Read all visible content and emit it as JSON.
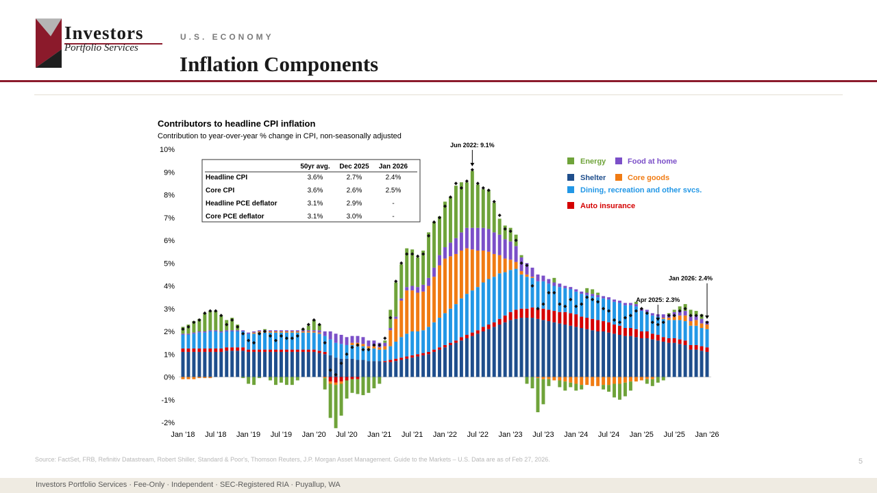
{
  "brand": {
    "name": "Investors",
    "sub": "Portfolio Services"
  },
  "header": {
    "section": "U.S. ECONOMY",
    "title": "Inflation Components"
  },
  "chart_data": {
    "type": "bar",
    "stacked": true,
    "title": "Contributors to headline CPI inflation",
    "subtitle": "Contribution to year-over-year % change in CPI, non-seasonally adjusted",
    "ylim": [
      -2,
      10
    ],
    "ytick_labels": [
      "-2%",
      "-1%",
      "0%",
      "1%",
      "2%",
      "3%",
      "4%",
      "5%",
      "6%",
      "7%",
      "8%",
      "9%",
      "10%"
    ],
    "xtick_labels": [
      "Jan '18",
      "Jul '18",
      "Jan '19",
      "Jul '19",
      "Jan '20",
      "Jul '20",
      "Jan '21",
      "Jul '21",
      "Jan '22",
      "Jul '22",
      "Jan '23",
      "Jul '23",
      "Jan '24",
      "Jul '24",
      "Jan '25",
      "Jul '25",
      "Jan '26"
    ],
    "months_from": "Jan 2018",
    "series_order": [
      "Shelter",
      "Auto insurance",
      "Dining, recreation and other svcs.",
      "Core goods",
      "Food at home",
      "Energy"
    ],
    "colors": {
      "Shelter": "#1f4e8c",
      "Auto insurance": "#d40000",
      "Dining, recreation and other svcs.": "#2297e6",
      "Core goods": "#f07b13",
      "Food at home": "#7b4fc8",
      "Energy": "#6fa33a",
      "headline": "#111111"
    },
    "legend": {
      "energy": "Energy",
      "food": "Food at home",
      "shelter": "Shelter",
      "core_goods": "Core goods",
      "dining": "Dining, recreation and other svcs.",
      "auto": "Auto insurance"
    },
    "table": {
      "headers": [
        "",
        "50yr avg.",
        "Dec 2025",
        "Jan 2026"
      ],
      "rows": [
        [
          "Headline CPI",
          "3.6%",
          "2.7%",
          "2.4%"
        ],
        [
          "Core CPI",
          "3.6%",
          "2.6%",
          "2.5%"
        ],
        [
          "Headline PCE deflator",
          "3.1%",
          "2.9%",
          "-"
        ],
        [
          "Core PCE deflator",
          "3.1%",
          "3.0%",
          "-"
        ]
      ]
    },
    "annotations": [
      {
        "text": "Jun 2022: 9.1%",
        "month_index": 53,
        "value": 9.1
      },
      {
        "text": "Apr 2025: 2.3%",
        "month_index": 87,
        "value": 2.3
      },
      {
        "text": "Jan 2026: 2.4%",
        "month_index": 96,
        "value": 2.4
      }
    ],
    "headline": [
      2.1,
      2.2,
      2.4,
      2.5,
      2.8,
      2.9,
      2.9,
      2.7,
      2.3,
      2.5,
      2.2,
      1.9,
      1.6,
      1.5,
      1.9,
      2.0,
      1.8,
      1.6,
      1.8,
      1.7,
      1.7,
      1.8,
      2.1,
      2.3,
      2.5,
      2.3,
      1.5,
      0.3,
      0.1,
      0.6,
      1.0,
      1.3,
      1.4,
      1.2,
      1.2,
      1.4,
      1.4,
      1.7,
      2.6,
      4.2,
      5.0,
      5.4,
      5.4,
      5.3,
      5.4,
      6.2,
      6.8,
      7.0,
      7.5,
      7.9,
      8.5,
      8.3,
      8.6,
      9.1,
      8.5,
      8.3,
      8.2,
      7.7,
      7.1,
      6.5,
      6.4,
      6.0,
      5.0,
      4.9,
      4.0,
      3.0,
      3.2,
      3.7,
      3.7,
      3.2,
      3.1,
      3.4,
      3.1,
      3.2,
      3.5,
      3.4,
      3.3,
      3.0,
      2.9,
      2.5,
      2.4,
      2.6,
      2.7,
      2.9,
      3.0,
      2.8,
      2.4,
      2.3,
      2.4,
      2.7,
      2.7,
      2.9,
      3.0,
      2.7,
      2.7,
      2.7,
      2.4
    ],
    "series": [
      {
        "name": "Shelter",
        "values": [
          1.1,
          1.1,
          1.1,
          1.1,
          1.1,
          1.1,
          1.1,
          1.1,
          1.15,
          1.15,
          1.15,
          1.15,
          1.1,
          1.1,
          1.1,
          1.1,
          1.1,
          1.1,
          1.1,
          1.1,
          1.1,
          1.1,
          1.1,
          1.1,
          1.1,
          1.05,
          1.0,
          0.95,
          0.85,
          0.8,
          0.8,
          0.8,
          0.75,
          0.75,
          0.7,
          0.7,
          0.7,
          0.65,
          0.65,
          0.7,
          0.75,
          0.8,
          0.85,
          0.9,
          0.95,
          1.0,
          1.1,
          1.2,
          1.3,
          1.4,
          1.5,
          1.6,
          1.7,
          1.8,
          1.9,
          2.0,
          2.1,
          2.2,
          2.3,
          2.4,
          2.5,
          2.55,
          2.6,
          2.6,
          2.6,
          2.55,
          2.5,
          2.45,
          2.4,
          2.35,
          2.3,
          2.25,
          2.2,
          2.15,
          2.1,
          2.05,
          2.0,
          2.0,
          1.95,
          1.9,
          1.85,
          1.8,
          1.8,
          1.75,
          1.7,
          1.7,
          1.65,
          1.6,
          1.55,
          1.5,
          1.5,
          1.45,
          1.4,
          1.2,
          1.2,
          1.15,
          1.1
        ]
      },
      {
        "name": "Auto insurance",
        "values": [
          0.15,
          0.15,
          0.15,
          0.15,
          0.15,
          0.15,
          0.15,
          0.15,
          0.15,
          0.15,
          0.15,
          0.15,
          0.1,
          0.1,
          0.1,
          0.1,
          0.1,
          0.1,
          0.1,
          0.1,
          0.1,
          0.1,
          0.1,
          0.1,
          0.1,
          0.1,
          0.1,
          -0.2,
          -0.25,
          -0.2,
          -0.15,
          -0.1,
          -0.1,
          0.0,
          0.0,
          0.0,
          0.0,
          0.05,
          0.1,
          0.1,
          0.1,
          0.1,
          0.1,
          0.1,
          0.1,
          0.1,
          0.1,
          0.1,
          0.1,
          0.1,
          0.1,
          0.15,
          0.15,
          0.15,
          0.15,
          0.2,
          0.2,
          0.2,
          0.25,
          0.3,
          0.35,
          0.4,
          0.4,
          0.4,
          0.45,
          0.45,
          0.5,
          0.5,
          0.5,
          0.5,
          0.55,
          0.55,
          0.55,
          0.5,
          0.5,
          0.5,
          0.5,
          0.45,
          0.45,
          0.4,
          0.4,
          0.35,
          0.35,
          0.35,
          0.3,
          0.3,
          0.25,
          0.25,
          0.2,
          0.2,
          0.2,
          0.2,
          0.2,
          0.2,
          0.2,
          0.2,
          0.2
        ]
      },
      {
        "name": "Dining, recreation and other svcs.",
        "values": [
          0.6,
          0.6,
          0.65,
          0.7,
          0.7,
          0.75,
          0.75,
          0.7,
          0.7,
          0.7,
          0.7,
          0.7,
          0.7,
          0.7,
          0.75,
          0.75,
          0.75,
          0.75,
          0.75,
          0.75,
          0.75,
          0.75,
          0.75,
          0.75,
          0.75,
          0.75,
          0.7,
          0.7,
          0.65,
          0.65,
          0.6,
          0.6,
          0.6,
          0.6,
          0.55,
          0.55,
          0.5,
          0.5,
          0.6,
          0.75,
          0.9,
          1.0,
          1.05,
          1.0,
          1.0,
          1.1,
          1.2,
          1.3,
          1.4,
          1.5,
          1.6,
          1.7,
          1.8,
          1.85,
          1.9,
          1.95,
          2.0,
          2.0,
          2.0,
          1.9,
          1.85,
          1.8,
          1.5,
          1.4,
          1.3,
          1.2,
          1.2,
          1.15,
          1.1,
          1.1,
          1.05,
          1.05,
          1.0,
          1.0,
          1.0,
          1.0,
          1.0,
          1.0,
          1.0,
          1.0,
          1.0,
          1.0,
          1.0,
          1.0,
          0.9,
          0.85,
          0.8,
          0.8,
          0.8,
          0.8,
          0.8,
          0.85,
          0.85,
          0.85,
          0.85,
          0.8,
          0.8
        ]
      },
      {
        "name": "Core goods",
        "values": [
          -0.1,
          -0.1,
          -0.1,
          -0.05,
          -0.05,
          -0.05,
          0.0,
          0.0,
          0.0,
          0.0,
          0.0,
          0.0,
          0.0,
          0.05,
          0.05,
          0.05,
          0.05,
          0.05,
          0.05,
          0.05,
          0.05,
          0.05,
          0.05,
          0.05,
          0.05,
          0.05,
          -0.05,
          -0.1,
          -0.1,
          -0.1,
          0.0,
          0.1,
          0.15,
          0.1,
          0.1,
          0.1,
          0.1,
          0.15,
          0.7,
          1.0,
          1.6,
          1.9,
          1.8,
          1.7,
          1.7,
          1.8,
          2.0,
          2.3,
          2.4,
          2.3,
          2.2,
          2.1,
          2.0,
          1.8,
          1.6,
          1.4,
          1.2,
          1.0,
          0.8,
          0.6,
          0.45,
          0.3,
          0.15,
          0.1,
          0.05,
          -0.05,
          -0.1,
          -0.1,
          -0.15,
          -0.15,
          -0.2,
          -0.25,
          -0.3,
          -0.35,
          -0.35,
          -0.4,
          -0.4,
          -0.35,
          -0.35,
          -0.3,
          -0.3,
          -0.25,
          -0.2,
          -0.2,
          -0.15,
          -0.1,
          -0.1,
          0.0,
          0.05,
          0.1,
          0.15,
          0.2,
          0.25,
          0.2,
          0.25,
          0.2,
          0.2
        ]
      },
      {
        "name": "Food at home",
        "values": [
          0.05,
          0.05,
          0.05,
          0.05,
          0.05,
          0.05,
          0.05,
          0.05,
          0.05,
          0.05,
          0.05,
          0.05,
          0.05,
          0.05,
          0.05,
          0.05,
          0.05,
          0.05,
          0.05,
          0.05,
          0.05,
          0.05,
          0.05,
          0.05,
          0.05,
          0.1,
          0.2,
          0.35,
          0.4,
          0.4,
          0.35,
          0.3,
          0.3,
          0.3,
          0.25,
          0.25,
          0.2,
          0.15,
          0.1,
          0.1,
          0.1,
          0.15,
          0.2,
          0.25,
          0.3,
          0.35,
          0.4,
          0.45,
          0.5,
          0.6,
          0.7,
          0.8,
          0.9,
          0.95,
          1.0,
          1.0,
          1.0,
          0.95,
          0.9,
          0.85,
          0.8,
          0.7,
          0.6,
          0.5,
          0.4,
          0.3,
          0.25,
          0.2,
          0.15,
          0.15,
          0.1,
          0.1,
          0.1,
          0.1,
          0.1,
          0.1,
          0.1,
          0.1,
          0.1,
          0.1,
          0.1,
          0.1,
          0.1,
          0.1,
          0.1,
          0.1,
          0.1,
          0.1,
          0.15,
          0.15,
          0.2,
          0.2,
          0.2,
          0.2,
          0.2,
          0.2,
          0.15
        ]
      },
      {
        "name": "Energy",
        "values": [
          0.3,
          0.4,
          0.5,
          0.55,
          0.8,
          0.85,
          0.85,
          0.7,
          0.45,
          0.55,
          0.25,
          -0.05,
          -0.3,
          -0.35,
          -0.05,
          0.05,
          -0.15,
          -0.35,
          -0.25,
          -0.35,
          -0.35,
          -0.15,
          0.05,
          0.2,
          0.45,
          0.25,
          -0.5,
          -1.5,
          -1.9,
          -1.4,
          -0.8,
          -0.6,
          -0.65,
          -0.8,
          -0.7,
          -0.5,
          -0.3,
          0.1,
          0.8,
          1.5,
          1.5,
          1.7,
          1.6,
          1.3,
          1.5,
          2.0,
          2.0,
          1.7,
          2.0,
          2.0,
          2.3,
          2.2,
          2.0,
          2.5,
          1.9,
          1.7,
          1.7,
          1.3,
          0.7,
          0.6,
          0.6,
          0.5,
          0.1,
          -0.3,
          -0.5,
          -1.5,
          -1.1,
          -0.3,
          0.2,
          -0.3,
          -0.4,
          -0.2,
          -0.3,
          -0.2,
          0.2,
          0.2,
          0.1,
          -0.2,
          -0.3,
          -0.6,
          -0.7,
          -0.6,
          -0.4,
          0.1,
          0.0,
          -0.2,
          -0.3,
          -0.25,
          -0.15,
          0.05,
          0.1,
          0.2,
          0.3,
          0.3,
          0.2,
          0.2,
          0.0
        ]
      }
    ]
  },
  "footer": {
    "source": "Source: FactSet, FRB, Refinitiv Datastream, Robert Shiller, Standard & Poor's, Thomson Reuters, J.P. Morgan Asset Management. Guide to the Markets – U.S. Data are as of Feb 27, 2026.",
    "page_number": "5",
    "tagline": "Investors Portfolio Services · Fee-Only · Independent · SEC-Registered RIA · Puyallup, WA"
  }
}
